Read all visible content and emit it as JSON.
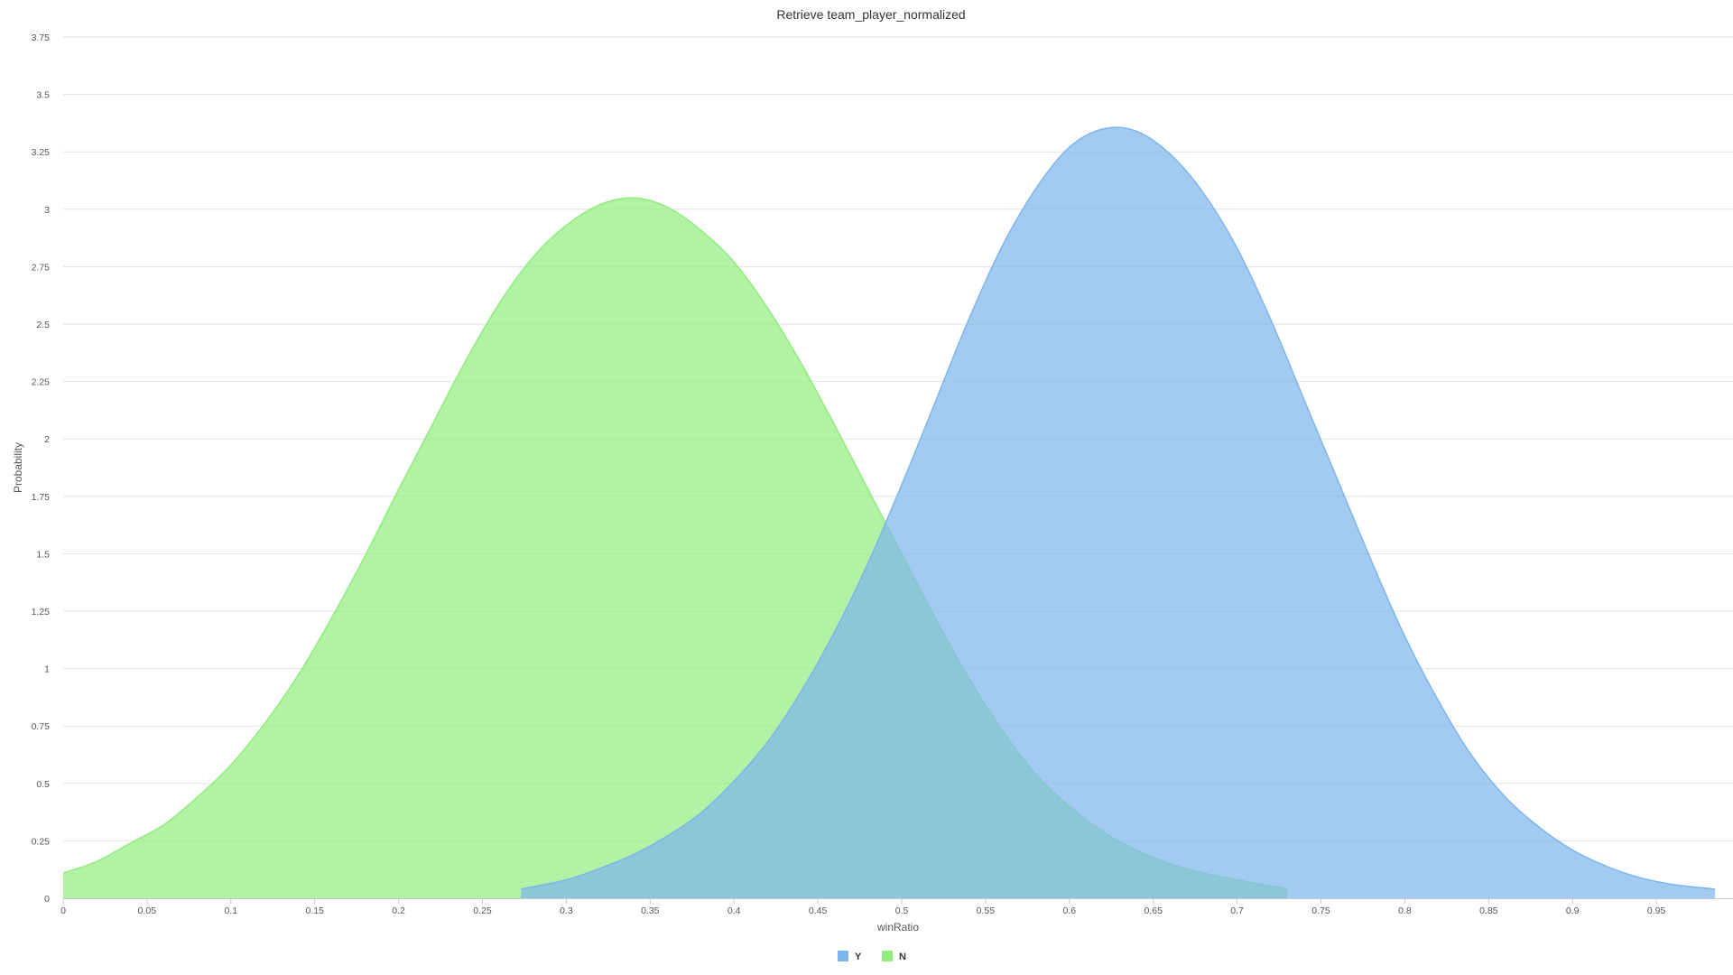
{
  "chart_data": {
    "type": "area",
    "title": "Retrieve team_player_normalized",
    "xlabel": "winRatio",
    "ylabel": "Probability",
    "xlim": [
      0,
      0.99
    ],
    "ylim": [
      0,
      3.75
    ],
    "x_ticks": [
      "0",
      "0.05",
      "0.1",
      "0.15",
      "0.2",
      "0.25",
      "0.3",
      "0.35",
      "0.4",
      "0.45",
      "0.5",
      "0.55",
      "0.6",
      "0.65",
      "0.7",
      "0.75",
      "0.8",
      "0.85",
      "0.9",
      "0.95"
    ],
    "y_ticks": [
      "0",
      "0.25",
      "0.5",
      "0.75",
      "1",
      "1.25",
      "1.5",
      "1.75",
      "2",
      "2.25",
      "2.5",
      "2.75",
      "3",
      "3.25",
      "3.5",
      "3.75"
    ],
    "grid": true,
    "legend_position": "bottom",
    "series": [
      {
        "name": "N",
        "color": "#90ed7d",
        "fill_opacity": 0.7,
        "points": [
          [
            0.0,
            0.11
          ],
          [
            0.02,
            0.16
          ],
          [
            0.04,
            0.24
          ],
          [
            0.06,
            0.32
          ],
          [
            0.08,
            0.44
          ],
          [
            0.1,
            0.58
          ],
          [
            0.12,
            0.76
          ],
          [
            0.14,
            0.97
          ],
          [
            0.16,
            1.22
          ],
          [
            0.18,
            1.49
          ],
          [
            0.2,
            1.78
          ],
          [
            0.22,
            2.06
          ],
          [
            0.24,
            2.34
          ],
          [
            0.26,
            2.59
          ],
          [
            0.28,
            2.79
          ],
          [
            0.3,
            2.93
          ],
          [
            0.32,
            3.02
          ],
          [
            0.34,
            3.05
          ],
          [
            0.36,
            3.01
          ],
          [
            0.38,
            2.91
          ],
          [
            0.4,
            2.77
          ],
          [
            0.42,
            2.57
          ],
          [
            0.44,
            2.33
          ],
          [
            0.46,
            2.06
          ],
          [
            0.48,
            1.78
          ],
          [
            0.5,
            1.5
          ],
          [
            0.52,
            1.22
          ],
          [
            0.54,
            0.96
          ],
          [
            0.56,
            0.73
          ],
          [
            0.58,
            0.54
          ],
          [
            0.6,
            0.4
          ],
          [
            0.62,
            0.29
          ],
          [
            0.64,
            0.21
          ],
          [
            0.66,
            0.15
          ],
          [
            0.68,
            0.11
          ],
          [
            0.7,
            0.08
          ],
          [
            0.73,
            0.04
          ]
        ]
      },
      {
        "name": "Y",
        "color": "#7cb5ec",
        "fill_opacity": 0.7,
        "points": [
          [
            0.273,
            0.04
          ],
          [
            0.3,
            0.08
          ],
          [
            0.32,
            0.13
          ],
          [
            0.34,
            0.19
          ],
          [
            0.36,
            0.27
          ],
          [
            0.38,
            0.37
          ],
          [
            0.4,
            0.51
          ],
          [
            0.42,
            0.68
          ],
          [
            0.44,
            0.9
          ],
          [
            0.46,
            1.16
          ],
          [
            0.48,
            1.46
          ],
          [
            0.5,
            1.8
          ],
          [
            0.52,
            2.16
          ],
          [
            0.54,
            2.52
          ],
          [
            0.56,
            2.84
          ],
          [
            0.58,
            3.09
          ],
          [
            0.6,
            3.27
          ],
          [
            0.62,
            3.35
          ],
          [
            0.64,
            3.34
          ],
          [
            0.66,
            3.24
          ],
          [
            0.68,
            3.07
          ],
          [
            0.7,
            2.83
          ],
          [
            0.72,
            2.52
          ],
          [
            0.74,
            2.17
          ],
          [
            0.76,
            1.82
          ],
          [
            0.78,
            1.47
          ],
          [
            0.8,
            1.14
          ],
          [
            0.82,
            0.86
          ],
          [
            0.84,
            0.62
          ],
          [
            0.86,
            0.44
          ],
          [
            0.88,
            0.31
          ],
          [
            0.9,
            0.21
          ],
          [
            0.92,
            0.14
          ],
          [
            0.94,
            0.09
          ],
          [
            0.96,
            0.06
          ],
          [
            0.985,
            0.04
          ]
        ]
      }
    ],
    "legend": [
      {
        "name": "Y",
        "color": "#7cb5ec"
      },
      {
        "name": "N",
        "color": "#90ed7d"
      }
    ]
  }
}
